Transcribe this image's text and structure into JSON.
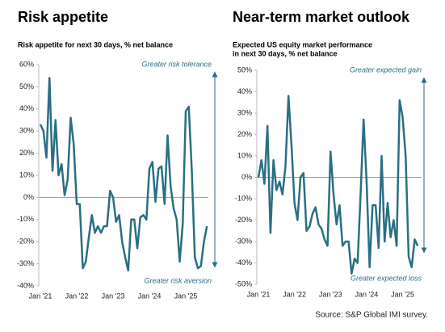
{
  "chart_data": [
    {
      "type": "line",
      "title": "Risk appetite",
      "subtitle": [
        "Risk appetite for next 30 days, % net balance"
      ],
      "annotations": [
        "Greater risk tolerance",
        "Greater risk aversion"
      ],
      "categories": [
        "Jan '21",
        null,
        null,
        null,
        null,
        null,
        null,
        null,
        null,
        null,
        null,
        null,
        "Jan '22",
        null,
        null,
        null,
        null,
        null,
        null,
        null,
        null,
        null,
        null,
        null,
        "Jan '23",
        null,
        null,
        null,
        null,
        null,
        null,
        null,
        null,
        null,
        null,
        null,
        "Jan '24",
        null,
        null,
        null,
        null,
        null,
        null,
        null,
        null,
        null,
        null,
        null,
        "Jan '25",
        null,
        null,
        null,
        null,
        null,
        null,
        null
      ],
      "series": [
        {
          "name": "Risk appetite",
          "color": "#2a6f83",
          "values": [
            33,
            30,
            18,
            54,
            12,
            35,
            10,
            15,
            1,
            8,
            36,
            24,
            -3,
            -3,
            -32,
            -29,
            -18,
            -8,
            -16,
            -13,
            -16,
            -13,
            -13,
            3,
            0,
            -11,
            -8,
            -20,
            -27,
            -33,
            -10,
            -10,
            -23,
            -9,
            -8,
            -10,
            13,
            16,
            -2,
            13,
            14,
            -3,
            28,
            5,
            -5,
            -10,
            -29,
            -12,
            39,
            41,
            12,
            -27,
            -32,
            -31,
            -20,
            -13
          ]
        }
      ],
      "ylim": [
        -40,
        60
      ],
      "yticks": [
        {
          "value": 60,
          "label": "60%"
        },
        {
          "value": 50,
          "label": "50%"
        },
        {
          "value": 40,
          "label": "40%"
        },
        {
          "value": 30,
          "label": "30%"
        },
        {
          "value": 20,
          "label": "20%"
        },
        {
          "value": 10,
          "label": "10%"
        },
        {
          "value": 0,
          "label": "0%"
        },
        {
          "value": -10,
          "label": "-10%"
        },
        {
          "value": -20,
          "label": "-20%"
        },
        {
          "value": -30,
          "label": "-30%"
        },
        {
          "value": -40,
          "label": "-40%"
        }
      ]
    },
    {
      "type": "line",
      "title": "Near-term market outlook",
      "subtitle": [
        "Expected US equity market performance",
        "in next 30 days, % net balance"
      ],
      "annotations": [
        "Greater expected gain",
        "Greater  expected loss"
      ],
      "categories": [
        "Jan '21",
        null,
        null,
        null,
        null,
        null,
        null,
        null,
        null,
        null,
        null,
        null,
        "Jan '22",
        null,
        null,
        null,
        null,
        null,
        null,
        null,
        null,
        null,
        null,
        null,
        "Jan '23",
        null,
        null,
        null,
        null,
        null,
        null,
        null,
        null,
        null,
        null,
        null,
        "Jan '24",
        null,
        null,
        null,
        null,
        null,
        null,
        null,
        null,
        null,
        null,
        null,
        "Jan '25",
        null,
        null,
        null,
        null,
        null
      ],
      "series": [
        {
          "name": "Expected US equity market performance",
          "color": "#2a6f83",
          "values": [
            0,
            8,
            -3,
            24,
            -26,
            8,
            -6,
            -2,
            -8,
            5,
            38,
            15,
            -12,
            -20,
            0,
            2,
            -25,
            -23,
            -17,
            -14,
            -22,
            -24,
            -29,
            -32,
            12,
            -8,
            -22,
            -13,
            -32,
            -30,
            -30,
            -45,
            -38,
            -40,
            -8,
            27,
            -2,
            -42,
            -13,
            -13,
            -33,
            10,
            -30,
            -12,
            -28,
            -20,
            -32,
            36,
            28,
            10,
            -37,
            -42,
            -29,
            -32
          ]
        }
      ],
      "ylim": [
        -50,
        50
      ],
      "yticks": [
        {
          "value": 50,
          "label": "50%"
        },
        {
          "value": 40,
          "label": "40%"
        },
        {
          "value": 30,
          "label": "30%"
        },
        {
          "value": 20,
          "label": "20%"
        },
        {
          "value": 10,
          "label": "10%"
        },
        {
          "value": 0,
          "label": "0%"
        },
        {
          "value": -10,
          "label": "-10%"
        },
        {
          "value": -20,
          "label": "-20%"
        },
        {
          "value": -30,
          "label": "-30%"
        },
        {
          "value": -40,
          "label": "-40%"
        },
        {
          "value": -50,
          "label": "-50%"
        }
      ]
    }
  ],
  "source": "Source: S&P Global IMI survey."
}
